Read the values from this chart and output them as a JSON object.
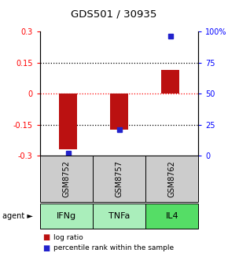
{
  "title": "GDS501 / 30935",
  "samples": [
    "GSM8752",
    "GSM8757",
    "GSM8762"
  ],
  "agents": [
    "IFNg",
    "TNFa",
    "IL4"
  ],
  "log_ratios": [
    -0.27,
    -0.175,
    0.115
  ],
  "percentile_ranks": [
    0.02,
    0.21,
    0.965
  ],
  "ylim_left": [
    -0.3,
    0.3
  ],
  "yticks_left": [
    -0.3,
    -0.15,
    0.0,
    0.15,
    0.3
  ],
  "ytick_labels_left": [
    "-0.3",
    "-0.15",
    "0",
    "0.15",
    "0.3"
  ],
  "yticks_right": [
    0.0,
    0.25,
    0.5,
    0.75,
    1.0
  ],
  "ytick_labels_right": [
    "0",
    "25",
    "50",
    "75",
    "100%"
  ],
  "hlines_black": [
    0.15,
    -0.15
  ],
  "hline_red": 0.0,
  "bar_color": "#bb1111",
  "dot_color": "#2222cc",
  "sample_bg": "#cccccc",
  "agent_colors": [
    "#aaeebb",
    "#aaeebb",
    "#55dd66"
  ],
  "bar_width": 0.35,
  "x_positions": [
    0,
    1,
    2
  ]
}
